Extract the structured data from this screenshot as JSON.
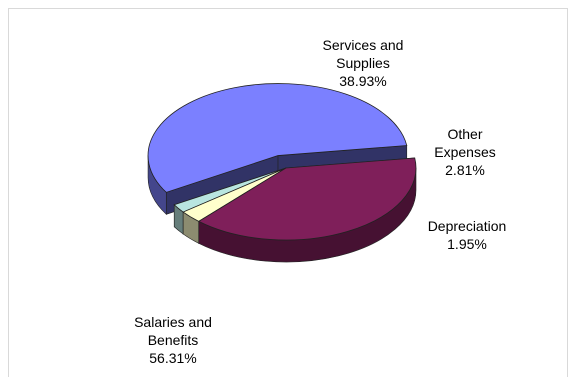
{
  "chart_data": {
    "type": "pie",
    "three_d": true,
    "title": "",
    "legend": "none",
    "slices": [
      {
        "key": "services",
        "line1": "Services and",
        "line2": "Supplies",
        "pct_label": "38.93%",
        "value": 38.93,
        "color": "#7f1f5a",
        "exploded": false
      },
      {
        "key": "other",
        "line1": "Other",
        "line2": "Expenses",
        "pct_label": "2.81%",
        "value": 2.81,
        "color": "#ffffcc",
        "exploded": false
      },
      {
        "key": "depreciation",
        "line1": "Depreciation",
        "line2": "",
        "pct_label": "1.95%",
        "value": 1.95,
        "color": "#b9e5e0",
        "exploded": false
      },
      {
        "key": "salaries",
        "line1": "Salaries and",
        "line2": "Benefits",
        "pct_label": "56.31%",
        "value": 56.31,
        "color": "#7b80ff",
        "exploded": true
      }
    ]
  }
}
